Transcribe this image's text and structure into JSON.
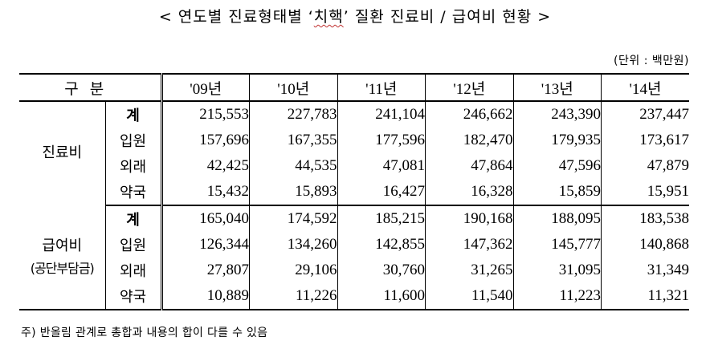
{
  "title_prefix": "< 연도별 진료형태별 ‘",
  "title_highlight": "치핵",
  "title_suffix": "’ 질환 진료비 / 급여비 현황 >",
  "unit": "(단위 : 백만원)",
  "header": {
    "label": "구분",
    "years": [
      "'09년",
      "'10년",
      "'11년",
      "'12년",
      "'13년",
      "'14년"
    ]
  },
  "sections": [
    {
      "group": "진료비",
      "group_note": "",
      "rows": [
        {
          "label": "계",
          "values": [
            "215,553",
            "227,783",
            "241,104",
            "246,662",
            "243,390",
            "237,447"
          ]
        },
        {
          "label": "입원",
          "values": [
            "157,696",
            "167,355",
            "177,596",
            "182,470",
            "179,935",
            "173,617"
          ]
        },
        {
          "label": "외래",
          "values": [
            "42,425",
            "44,535",
            "47,081",
            "47,864",
            "47,596",
            "47,879"
          ]
        },
        {
          "label": "약국",
          "values": [
            "15,432",
            "15,893",
            "16,427",
            "16,328",
            "15,859",
            "15,951"
          ]
        }
      ]
    },
    {
      "group": "급여비",
      "group_note": "(공단부담금)",
      "rows": [
        {
          "label": "계",
          "values": [
            "165,040",
            "174,592",
            "185,215",
            "190,168",
            "188,095",
            "183,538"
          ]
        },
        {
          "label": "입원",
          "values": [
            "126,344",
            "134,260",
            "142,855",
            "147,362",
            "145,777",
            "140,868"
          ]
        },
        {
          "label": "외래",
          "values": [
            "27,807",
            "29,106",
            "30,760",
            "31,265",
            "31,095",
            "31,349"
          ]
        },
        {
          "label": "약국",
          "values": [
            "10,889",
            "11,226",
            "11,600",
            "11,540",
            "11,223",
            "11,321"
          ]
        }
      ]
    }
  ],
  "footnote": "주) 반올림 관계로 총합과 내용의 합이 다를 수 있음"
}
